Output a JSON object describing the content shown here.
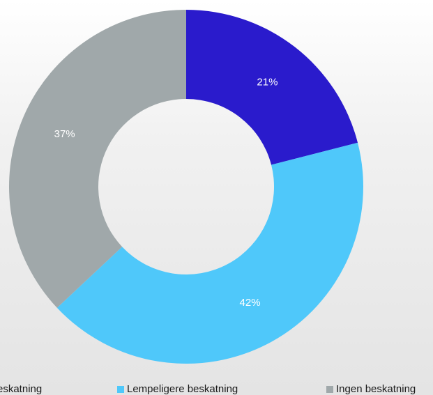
{
  "chart_data": {
    "type": "pie",
    "variant": "donut",
    "start_angle": "12 o'clock, clockwise",
    "slices": [
      {
        "name": "Beskatning",
        "value": 21,
        "label": "21%",
        "color": "#2a1bcc"
      },
      {
        "name": "Lempeligere beskatning",
        "value": 42,
        "label": "42%",
        "color": "#4fc8fa"
      },
      {
        "name": "Ingen beskatning",
        "value": 37,
        "label": "37%",
        "color": "#a0a8aa"
      }
    ],
    "legend": {
      "placement": "bottom",
      "entries": [
        "Beskatning",
        "Lempeligere beskatning",
        "Ingen beskatning"
      ]
    },
    "legend_visible_texts": [
      "eskatning",
      "Lempeligere beskatning",
      "Ingen beskatning"
    ]
  }
}
